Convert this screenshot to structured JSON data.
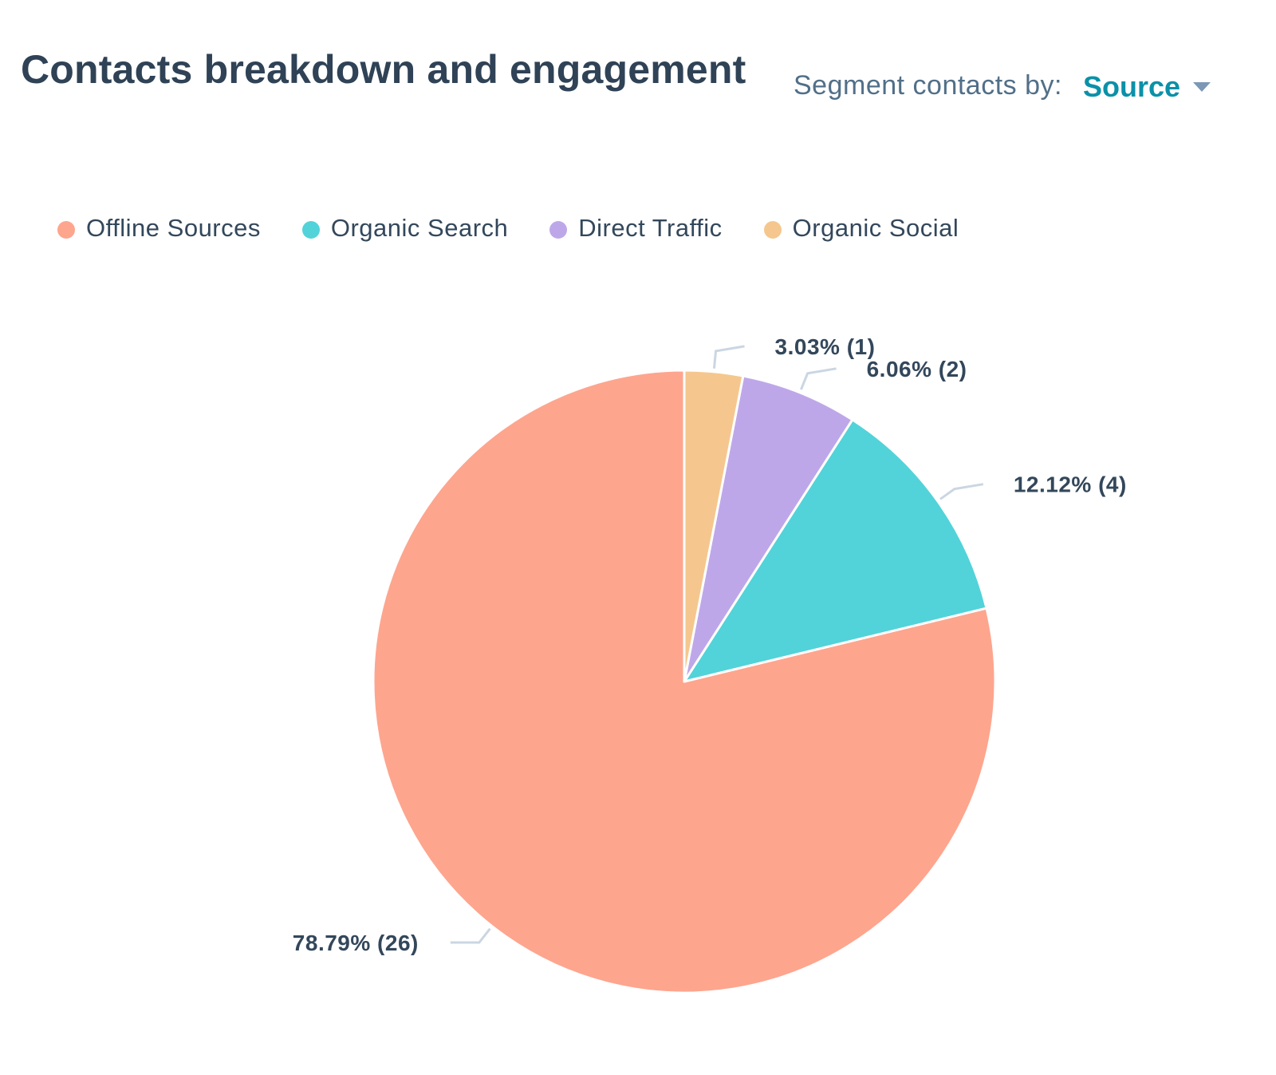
{
  "header": {
    "title": "Contacts breakdown and engagement",
    "segment_label": "Segment contacts by:",
    "segment_value": "Source"
  },
  "icons": {
    "dropdown": "chevron-down-icon"
  },
  "chart_data": {
    "type": "pie",
    "title": "",
    "legend_position": "top-left",
    "series": [
      {
        "name": "Offline Sources",
        "value": 26,
        "percent": 78.79,
        "label": "78.79% (26)",
        "color": "#fea58e"
      },
      {
        "name": "Organic Search",
        "value": 4,
        "percent": 12.12,
        "label": "12.12% (4)",
        "color": "#51d3d9"
      },
      {
        "name": "Direct Traffic",
        "value": 2,
        "percent": 6.06,
        "label": "6.06% (2)",
        "color": "#bea7e9"
      },
      {
        "name": "Organic Social",
        "value": 1,
        "percent": 3.03,
        "label": "3.03% (1)",
        "color": "#f5c78e"
      }
    ]
  }
}
